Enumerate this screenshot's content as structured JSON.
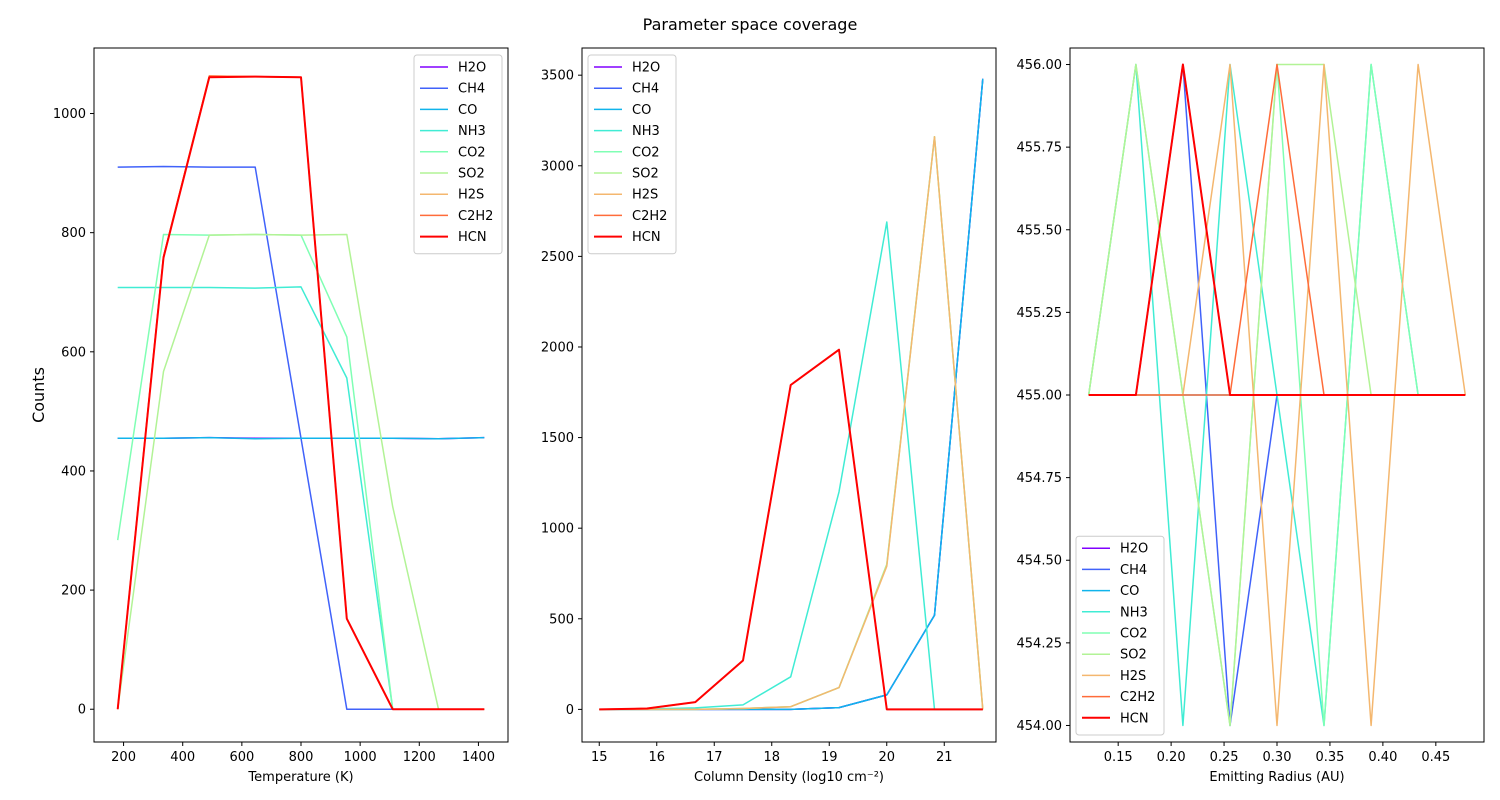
{
  "figure": {
    "title": "Parameter space coverage"
  },
  "chart_data": [
    {
      "type": "line",
      "xlabel": "Temperature (K)",
      "ylabel": "Counts",
      "xlim": [
        100,
        1500
      ],
      "ylim": [
        -55,
        1110
      ],
      "xticks": [
        200,
        400,
        600,
        800,
        1000,
        1200,
        1400
      ],
      "yticks": [
        0,
        200,
        400,
        600,
        800,
        1000
      ],
      "xtick_labels": [
        "200",
        "400",
        "600",
        "800",
        "1000",
        "1200",
        "1400"
      ],
      "ytick_labels": [
        "0",
        "200",
        "400",
        "600",
        "800",
        "1000"
      ],
      "legend_position": "top-right",
      "x": [
        180,
        335,
        490,
        645,
        800,
        955,
        1110,
        1265,
        1420
      ],
      "series": [
        {
          "name": "H2O",
          "color": "#8000ff",
          "values": [
            455,
            455,
            456,
            455,
            455,
            455,
            455,
            454,
            456
          ]
        },
        {
          "name": "CH4",
          "color": "#4062fa",
          "values": [
            910,
            911,
            910,
            910,
            455,
            0,
            0,
            0,
            0
          ]
        },
        {
          "name": "CO",
          "color": "#10b4eb",
          "values": [
            455,
            455,
            456,
            454,
            455,
            455,
            455,
            454,
            456
          ]
        },
        {
          "name": "NH3",
          "color": "#40ecd4",
          "values": [
            708,
            708,
            708,
            707,
            709,
            556,
            0,
            0,
            0
          ]
        },
        {
          "name": "CO2",
          "color": "#80ffb4",
          "values": [
            284,
            797,
            796,
            797,
            796,
            625,
            0,
            0,
            0
          ]
        },
        {
          "name": "SO2",
          "color": "#b2f396",
          "values": [
            0,
            567,
            796,
            797,
            796,
            797,
            340,
            0,
            0
          ]
        },
        {
          "name": "H2S",
          "color": "#f4b76f",
          "values": [
            0,
            760,
            1063,
            1062,
            1061,
            152,
            0,
            0,
            0
          ]
        },
        {
          "name": "C2H2",
          "color": "#ff6c3a",
          "values": [
            0,
            760,
            1063,
            1062,
            1061,
            152,
            0,
            0,
            0
          ]
        },
        {
          "name": "HCN",
          "color": "#ff0000",
          "values": [
            0,
            758,
            1061,
            1062,
            1061,
            152,
            0,
            0,
            0
          ]
        }
      ]
    },
    {
      "type": "line",
      "xlabel": "Column Density (log10 cm⁻²)",
      "ylabel": "",
      "xlim": [
        14.7,
        21.9
      ],
      "ylim": [
        -180,
        3650
      ],
      "xticks": [
        15,
        16,
        17,
        18,
        19,
        20,
        21
      ],
      "yticks": [
        0,
        500,
        1000,
        1500,
        2000,
        2500,
        3000,
        3500
      ],
      "xtick_labels": [
        "15",
        "16",
        "17",
        "18",
        "19",
        "20",
        "21"
      ],
      "ytick_labels": [
        "0",
        "500",
        "1000",
        "1500",
        "2000",
        "2500",
        "3000",
        "3500"
      ],
      "legend_position": "top-left",
      "x": [
        15.0,
        15.83,
        16.67,
        17.5,
        18.33,
        19.17,
        20.0,
        20.83,
        21.67
      ],
      "series": [
        {
          "name": "H2O",
          "color": "#8000ff",
          "values": [
            0,
            0,
            0,
            0,
            0,
            10,
            80,
            520,
            3480
          ]
        },
        {
          "name": "CH4",
          "color": "#4062fa",
          "values": [
            0,
            0,
            0,
            0,
            0,
            10,
            80,
            520,
            3480
          ]
        },
        {
          "name": "CO",
          "color": "#10b4eb",
          "values": [
            0,
            0,
            0,
            0,
            0,
            10,
            80,
            520,
            3480
          ]
        },
        {
          "name": "NH3",
          "color": "#40ecd4",
          "values": [
            0,
            2,
            8,
            25,
            180,
            1200,
            2690,
            0,
            0
          ]
        },
        {
          "name": "CO2",
          "color": "#80ffb4",
          "values": [
            0,
            0,
            0,
            5,
            15,
            120,
            800,
            3160,
            0
          ]
        },
        {
          "name": "SO2",
          "color": "#b2f396",
          "values": [
            0,
            0,
            0,
            5,
            15,
            120,
            800,
            3160,
            0
          ]
        },
        {
          "name": "H2S",
          "color": "#f4b76f",
          "values": [
            0,
            0,
            0,
            5,
            15,
            120,
            790,
            3160,
            0
          ]
        },
        {
          "name": "C2H2",
          "color": "#ff6c3a",
          "values": [
            0,
            5,
            40,
            270,
            1790,
            1985,
            0,
            0,
            0
          ]
        },
        {
          "name": "HCN",
          "color": "#ff0000",
          "values": [
            0,
            5,
            40,
            270,
            1790,
            1985,
            0,
            0,
            0
          ]
        }
      ]
    },
    {
      "type": "line",
      "xlabel": "Emitting Radius (AU)",
      "ylabel": "",
      "xlim": [
        0.1045,
        0.4955
      ],
      "ylim": [
        453.95,
        456.05
      ],
      "xticks": [
        0.15,
        0.2,
        0.25,
        0.3,
        0.35,
        0.4,
        0.45
      ],
      "yticks": [
        454.0,
        454.25,
        454.5,
        454.75,
        455.0,
        455.25,
        455.5,
        455.75,
        456.0
      ],
      "xtick_labels": [
        "0.15",
        "0.20",
        "0.25",
        "0.30",
        "0.35",
        "0.40",
        "0.45"
      ],
      "ytick_labels": [
        "454.00",
        "454.25",
        "454.50",
        "454.75",
        "455.00",
        "455.25",
        "455.50",
        "455.75",
        "456.00"
      ],
      "legend_position": "bottom-left",
      "x": [
        0.1222,
        0.1667,
        0.2111,
        0.2556,
        0.3,
        0.3444,
        0.3889,
        0.4333,
        0.4778
      ],
      "series": [
        {
          "name": "H2O",
          "color": "#8000ff",
          "values": [
            455,
            455,
            456,
            455,
            455,
            455,
            455,
            455,
            455
          ]
        },
        {
          "name": "CH4",
          "color": "#4062fa",
          "values": [
            455,
            455,
            456,
            454,
            455,
            455,
            455,
            455,
            455
          ]
        },
        {
          "name": "CO",
          "color": "#10b4eb",
          "values": [
            455,
            455,
            455,
            455,
            455,
            455,
            455,
            455,
            455
          ]
        },
        {
          "name": "NH3",
          "color": "#40ecd4",
          "values": [
            455,
            456,
            454,
            456,
            455,
            454,
            456,
            455,
            455
          ]
        },
        {
          "name": "CO2",
          "color": "#80ffb4",
          "values": [
            455,
            456,
            455,
            454,
            456,
            454,
            456,
            455,
            455
          ]
        },
        {
          "name": "SO2",
          "color": "#b2f396",
          "values": [
            455,
            456,
            455,
            454,
            456,
            456,
            455,
            455,
            455
          ]
        },
        {
          "name": "H2S",
          "color": "#f4b76f",
          "values": [
            455,
            455,
            455,
            456,
            454,
            456,
            454,
            456,
            455
          ]
        },
        {
          "name": "C2H2",
          "color": "#ff6c3a",
          "values": [
            455,
            455,
            455,
            455,
            456,
            455,
            455,
            455,
            455
          ]
        },
        {
          "name": "HCN",
          "color": "#ff0000",
          "values": [
            455,
            455,
            456,
            455,
            455,
            455,
            455,
            455,
            455
          ]
        }
      ]
    }
  ]
}
